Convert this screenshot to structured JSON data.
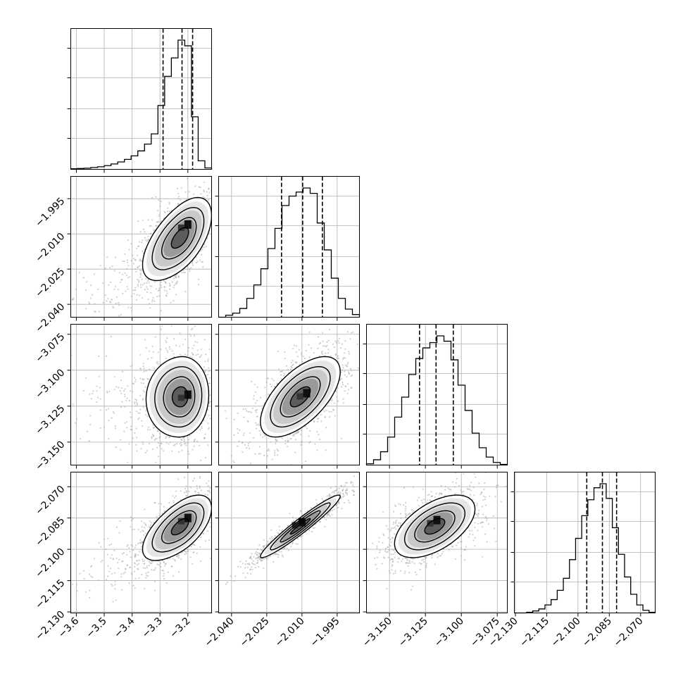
{
  "chart_data": {
    "type": "corner",
    "grid": true,
    "n_params": 4,
    "params": [
      {
        "range": [
          -3.62,
          -3.115
        ],
        "ticks": [
          -3.6,
          -3.5,
          -3.4,
          -3.3,
          -3.2
        ],
        "tick_labels": [
          "−3.6",
          "−3.5",
          "−3.4",
          "−3.3",
          "−3.2"
        ],
        "quantiles": [
          -3.289,
          -3.221,
          -3.183
        ],
        "mode": -3.2,
        "hist_bins": [
          [
            -3.62,
            0.004
          ],
          [
            -3.595,
            0.006
          ],
          [
            -3.57,
            0.008
          ],
          [
            -3.545,
            0.013
          ],
          [
            -3.52,
            0.018
          ],
          [
            -3.495,
            0.026
          ],
          [
            -3.47,
            0.038
          ],
          [
            -3.445,
            0.052
          ],
          [
            -3.42,
            0.07
          ],
          [
            -3.395,
            0.095
          ],
          [
            -3.37,
            0.13
          ],
          [
            -3.345,
            0.178
          ],
          [
            -3.32,
            0.25
          ],
          [
            -3.295,
            0.45
          ],
          [
            -3.27,
            0.655
          ],
          [
            -3.245,
            0.785
          ],
          [
            -3.22,
            0.91
          ],
          [
            -3.195,
            0.87
          ],
          [
            -3.17,
            0.37
          ],
          [
            -3.145,
            0.06
          ],
          [
            -3.12,
            0.01
          ]
        ]
      },
      {
        "range": [
          -2.0455,
          -1.9855
        ],
        "ticks": [
          -2.04,
          -2.025,
          -2.01,
          -1.995
        ],
        "tick_labels": [
          "−2.040",
          "−2.025",
          "−2.010",
          "−1.995"
        ],
        "quantiles": [
          -2.0187,
          -2.0097,
          -2.0013
        ],
        "mode": -2.006,
        "hist_bins": [
          [
            -2.0455,
            0.0
          ],
          [
            -2.0425,
            0.015
          ],
          [
            -2.0395,
            0.03
          ],
          [
            -2.0365,
            0.065
          ],
          [
            -2.0335,
            0.14
          ],
          [
            -2.0305,
            0.24
          ],
          [
            -2.0275,
            0.36
          ],
          [
            -2.0245,
            0.51
          ],
          [
            -2.0215,
            0.66
          ],
          [
            -2.0185,
            0.83
          ],
          [
            -2.0155,
            0.9
          ],
          [
            -2.0125,
            0.93
          ],
          [
            -2.0095,
            0.96
          ],
          [
            -2.0065,
            0.92
          ],
          [
            -2.0035,
            0.7
          ],
          [
            -2.0005,
            0.5
          ],
          [
            -1.9975,
            0.29
          ],
          [
            -1.9945,
            0.14
          ],
          [
            -1.9915,
            0.06
          ],
          [
            -1.9885,
            0.02
          ]
        ]
      },
      {
        "range": [
          -3.166,
          -3.068
        ],
        "ticks": [
          -3.15,
          -3.125,
          -3.1,
          -3.075
        ],
        "tick_labels": [
          "−3.150",
          "−3.125",
          "−3.100",
          "−3.075"
        ],
        "quantiles": [
          -3.1291,
          -3.1176,
          -3.1056
        ],
        "mode": -3.117,
        "hist_bins": [
          [
            -3.166,
            0.01
          ],
          [
            -3.161,
            0.04
          ],
          [
            -3.156,
            0.1
          ],
          [
            -3.151,
            0.21
          ],
          [
            -3.146,
            0.36
          ],
          [
            -3.141,
            0.51
          ],
          [
            -3.136,
            0.68
          ],
          [
            -3.131,
            0.8
          ],
          [
            -3.126,
            0.88
          ],
          [
            -3.121,
            0.92
          ],
          [
            -3.116,
            0.97
          ],
          [
            -3.111,
            0.93
          ],
          [
            -3.106,
            0.79
          ],
          [
            -3.101,
            0.6
          ],
          [
            -3.096,
            0.41
          ],
          [
            -3.091,
            0.24
          ],
          [
            -3.086,
            0.13
          ],
          [
            -3.081,
            0.06
          ],
          [
            -3.076,
            0.02
          ],
          [
            -3.071,
            0.005
          ]
        ]
      },
      {
        "range": [
          -2.1305,
          -2.063
        ],
        "ticks": [
          -2.13,
          -2.115,
          -2.1,
          -2.085,
          -2.07
        ],
        "tick_labels": [
          "−2.130",
          "−2.115",
          "−2.100",
          "−2.085",
          "−2.070"
        ],
        "quantiles": [
          -2.0958,
          -2.0883,
          -2.0815
        ],
        "mode": -2.087,
        "hist_bins": [
          [
            -2.1305,
            0.0
          ],
          [
            -2.127,
            0.0
          ],
          [
            -2.1245,
            0.005
          ],
          [
            -2.1215,
            0.015
          ],
          [
            -2.1185,
            0.03
          ],
          [
            -2.1155,
            0.06
          ],
          [
            -2.1125,
            0.1
          ],
          [
            -2.1095,
            0.17
          ],
          [
            -2.1065,
            0.26
          ],
          [
            -2.1035,
            0.4
          ],
          [
            -2.1005,
            0.56
          ],
          [
            -2.0975,
            0.73
          ],
          [
            -2.0945,
            0.85
          ],
          [
            -2.0915,
            0.94
          ],
          [
            -2.0885,
            0.97
          ],
          [
            -2.0855,
            0.86
          ],
          [
            -2.0825,
            0.64
          ],
          [
            -2.0795,
            0.44
          ],
          [
            -2.0765,
            0.27
          ],
          [
            -2.0735,
            0.14
          ],
          [
            -2.0705,
            0.06
          ],
          [
            -2.0675,
            0.02
          ],
          [
            -2.0645,
            0.005
          ]
        ]
      }
    ],
    "pairs": [
      {
        "x": 0,
        "y": 1,
        "center": [
          -3.225,
          -2.0115
        ],
        "sigma": [
          0.055,
          0.0085
        ],
        "corr": 0.55,
        "peak": [
          -3.2,
          -2.006
        ],
        "tail_left": true
      },
      {
        "x": 0,
        "y": 2,
        "center": [
          -3.225,
          -3.1185
        ],
        "sigma": [
          0.05,
          0.014
        ],
        "corr": 0.05,
        "peak": [
          -3.2,
          -3.117
        ],
        "tail_left": true
      },
      {
        "x": 1,
        "y": 2,
        "center": [
          -2.0107,
          -3.1185
        ],
        "sigma": [
          0.0085,
          0.014
        ],
        "corr": 0.62,
        "peak": [
          -2.008,
          -3.116
        ],
        "tail_left": false
      },
      {
        "x": 0,
        "y": 3,
        "center": [
          -3.225,
          -2.089
        ],
        "sigma": [
          0.055,
          0.0075
        ],
        "corr": 0.58,
        "peak": [
          -3.2,
          -2.085
        ],
        "tail_left": true
      },
      {
        "x": 1,
        "y": 3,
        "center": [
          -2.0107,
          -2.089
        ],
        "sigma": [
          0.0085,
          0.0075
        ],
        "corr": 0.96,
        "peak": [
          -2.01,
          -2.087
        ],
        "tail_left": false
      },
      {
        "x": 2,
        "y": 3,
        "center": [
          -3.1185,
          -2.089
        ],
        "sigma": [
          0.014,
          0.0075
        ],
        "corr": 0.55,
        "peak": [
          -3.117,
          -2.086
        ],
        "tail_left": false
      }
    ],
    "contour_levels_sigma": [
      0.5,
      1.0,
      1.5,
      2.0
    ],
    "colors": {
      "line": "#000000",
      "grid": "#b0b0b0",
      "scatter": "#a8a8a8",
      "axes": "#000000"
    }
  }
}
